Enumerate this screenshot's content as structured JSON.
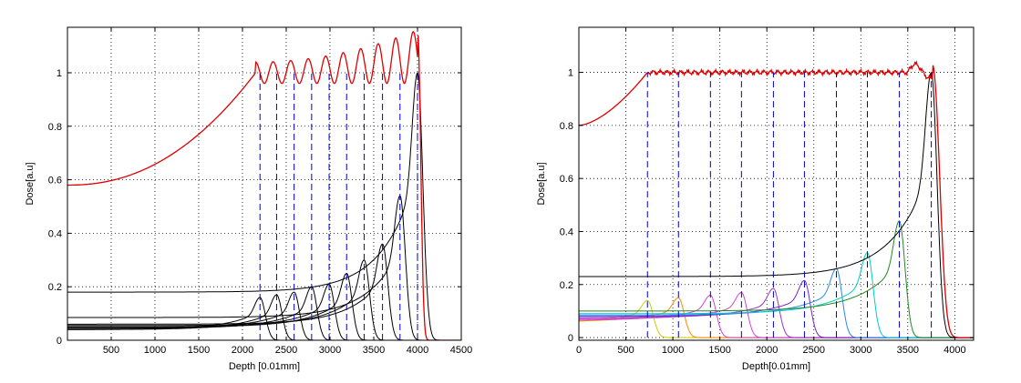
{
  "chart_data": [
    {
      "type": "line",
      "xlabel": "Depth [0.01mm]",
      "ylabel": "Dose[a.u]",
      "xlim": [
        0,
        4500
      ],
      "ylim": [
        0,
        1.17
      ],
      "xticks": [
        500,
        1000,
        1500,
        2000,
        2500,
        3000,
        3500,
        4000,
        4500
      ],
      "yticks": [
        0,
        0.2,
        0.4,
        0.6,
        0.8,
        1
      ],
      "ytick_labels": [
        "0",
        "0.2",
        "0.4",
        "0.6",
        "0.8",
        "1"
      ],
      "grid": true,
      "colors": {
        "sobp": "#e00000",
        "peaks": "#000000",
        "markers": "#0000cc"
      },
      "sobp": {
        "entrance": 0.58,
        "plateau_start": 2150,
        "end": 4000,
        "falloff": 4090,
        "ripple_pitch": 200,
        "peak_max": 1.16
      },
      "markers_x": [
        2200,
        2390,
        2590,
        2790,
        2990,
        3190,
        3390,
        3600,
        3800,
        4000
      ],
      "peaks": [
        {
          "range": 2200,
          "peak": 0.16,
          "entrance": 0.04
        },
        {
          "range": 2390,
          "peak": 0.17,
          "entrance": 0.04
        },
        {
          "range": 2590,
          "peak": 0.18,
          "entrance": 0.045
        },
        {
          "range": 2790,
          "peak": 0.2,
          "entrance": 0.045
        },
        {
          "range": 2990,
          "peak": 0.21,
          "entrance": 0.05
        },
        {
          "range": 3190,
          "peak": 0.25,
          "entrance": 0.05
        },
        {
          "range": 3390,
          "peak": 0.3,
          "entrance": 0.055
        },
        {
          "range": 3600,
          "peak": 0.36,
          "entrance": 0.06
        },
        {
          "range": 3800,
          "peak": 0.54,
          "entrance": 0.085
        },
        {
          "range": 4000,
          "peak": 1.0,
          "entrance": 0.18
        }
      ]
    },
    {
      "type": "line",
      "xlabel": "Depth[0.01mm]",
      "ylabel": "Dose[a.u]",
      "xlim": [
        0,
        4200
      ],
      "ylim": [
        -0.01,
        1.17
      ],
      "xticks": [
        0,
        500,
        1000,
        1500,
        2000,
        2500,
        3000,
        3500,
        4000
      ],
      "yticks": [
        0,
        0.2,
        0.4,
        0.6,
        0.8,
        1
      ],
      "ytick_labels": [
        "0",
        "0.2",
        "0.4",
        "0.6",
        "0.8",
        "1"
      ],
      "grid": true,
      "colors": {
        "sobp": "#e00000",
        "markers": "#0000cc"
      },
      "sobp": {
        "entrance": 0.8,
        "plateau_start": 730,
        "plateau_value": 1.0,
        "end": 3760,
        "falloff": 3950,
        "ripple_pitch": 0,
        "peak_max": 1.03
      },
      "markers_x": [
        730,
        1060,
        1400,
        1730,
        2070,
        2400,
        2740,
        3070,
        3410,
        3750
      ],
      "peaks": [
        {
          "range": 730,
          "peak": 0.14,
          "entrance": 0.055,
          "color": "#cccc00"
        },
        {
          "range": 1060,
          "peak": 0.15,
          "entrance": 0.06,
          "color": "#ff8800"
        },
        {
          "range": 1400,
          "peak": 0.16,
          "entrance": 0.065,
          "color": "#cc44cc"
        },
        {
          "range": 1730,
          "peak": 0.17,
          "entrance": 0.07,
          "color": "#cc44cc"
        },
        {
          "range": 2070,
          "peak": 0.185,
          "entrance": 0.075,
          "color": "#9933cc"
        },
        {
          "range": 2400,
          "peak": 0.215,
          "entrance": 0.08,
          "color": "#7722cc"
        },
        {
          "range": 2740,
          "peak": 0.26,
          "entrance": 0.085,
          "color": "#2288ee"
        },
        {
          "range": 3070,
          "peak": 0.32,
          "entrance": 0.09,
          "color": "#00cccc"
        },
        {
          "range": 3410,
          "peak": 0.44,
          "entrance": 0.1,
          "color": "#228822"
        },
        {
          "range": 3750,
          "peak": 1.0,
          "entrance": 0.23,
          "color": "#000000"
        }
      ]
    }
  ]
}
